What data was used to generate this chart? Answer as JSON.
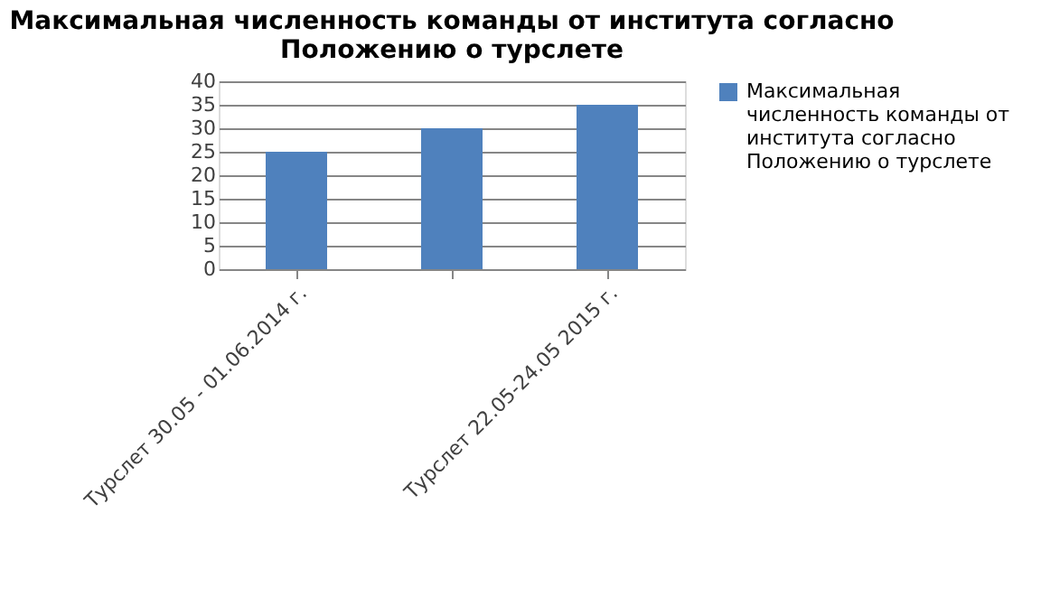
{
  "chart_data": {
    "type": "bar",
    "title": "Максимальная численность команды от института согласно Положению о турслете",
    "categories": [
      "Турслет 30.05 - 01.06.2014 г.",
      null,
      "Турслет 22.05-24.05 2015 г."
    ],
    "series": [
      {
        "name": "Максимальная численность команды от института согласно Положению о турслете",
        "color": "#4f81bd",
        "values": [
          25,
          30,
          35
        ]
      }
    ],
    "ylim": [
      0,
      40
    ],
    "yticks": [
      0,
      5,
      10,
      15,
      20,
      25,
      30,
      35,
      40
    ],
    "grid": "y",
    "legend": "right"
  }
}
